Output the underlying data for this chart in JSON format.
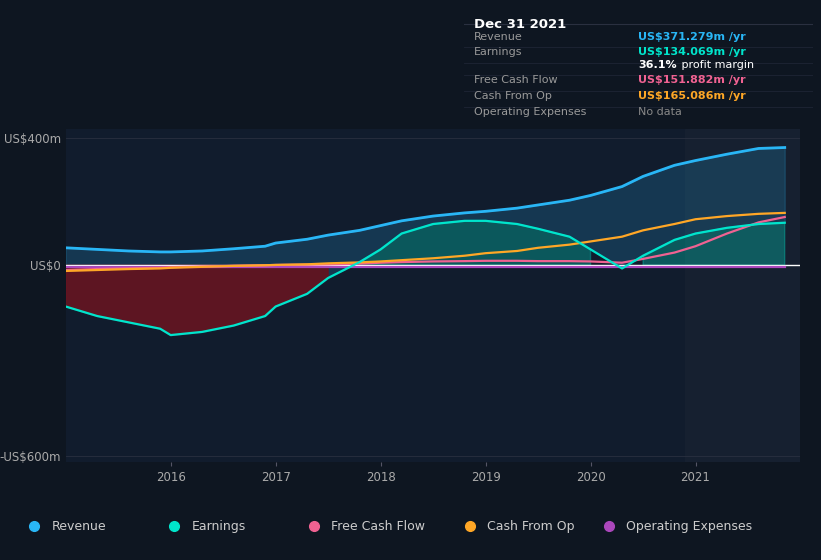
{
  "bg_color": "#0e1621",
  "chart_area_color": "#111c2d",
  "highlight_area_color": "#162030",
  "years": [
    2015.0,
    2015.3,
    2015.6,
    2015.9,
    2016.0,
    2016.3,
    2016.6,
    2016.9,
    2017.0,
    2017.3,
    2017.5,
    2017.8,
    2018.0,
    2018.2,
    2018.5,
    2018.8,
    2019.0,
    2019.3,
    2019.5,
    2019.8,
    2020.0,
    2020.3,
    2020.5,
    2020.8,
    2021.0,
    2021.3,
    2021.6,
    2021.85
  ],
  "revenue": [
    55,
    50,
    45,
    42,
    42,
    45,
    52,
    60,
    70,
    82,
    95,
    110,
    125,
    140,
    155,
    165,
    170,
    180,
    190,
    205,
    220,
    248,
    280,
    315,
    330,
    350,
    368,
    371
  ],
  "earnings": [
    -130,
    -160,
    -180,
    -200,
    -220,
    -210,
    -190,
    -160,
    -130,
    -90,
    -40,
    10,
    50,
    100,
    130,
    140,
    140,
    130,
    115,
    90,
    50,
    -10,
    30,
    80,
    100,
    118,
    130,
    134
  ],
  "free_cash_flow": [
    -15,
    -12,
    -10,
    -8,
    -6,
    -4,
    -2,
    0,
    1,
    2,
    3,
    5,
    8,
    10,
    12,
    13,
    14,
    14,
    13,
    13,
    12,
    8,
    20,
    40,
    60,
    100,
    135,
    152
  ],
  "cash_from_op": [
    -18,
    -15,
    -12,
    -10,
    -8,
    -5,
    -2,
    0,
    1,
    3,
    6,
    9,
    12,
    16,
    22,
    30,
    38,
    45,
    55,
    65,
    75,
    90,
    110,
    130,
    145,
    155,
    162,
    165
  ],
  "operating_expenses": [
    -5,
    -5,
    -5,
    -5,
    -5,
    -5,
    -5,
    -5,
    -5,
    -5,
    -5,
    -5,
    -5,
    -5,
    -5,
    -5,
    -5,
    -5,
    -5,
    -5,
    -5,
    -5,
    -5,
    -5,
    -5,
    -5,
    -5,
    -5
  ],
  "xlim": [
    2015.0,
    2022.0
  ],
  "ylim": [
    -620,
    430
  ],
  "yticks": [
    -600,
    0,
    400
  ],
  "ytick_labels": [
    "-US$600m",
    "US$0",
    "US$400m"
  ],
  "xtick_years": [
    2016,
    2017,
    2018,
    2019,
    2020,
    2021
  ],
  "revenue_color": "#29b6f6",
  "earnings_color": "#00e5cc",
  "free_cash_flow_color": "#f06292",
  "cash_from_op_color": "#ffa726",
  "operating_expenses_color": "#ab47bc",
  "zero_line_color": "#ffffff",
  "highlight_x_start": 2020.9,
  "highlight_x_end": 2022.0,
  "table_title": "Dec 31 2021",
  "table_rows": [
    {
      "label": "Revenue",
      "value": "US$371.279m /yr",
      "value_color": "#29b6f6"
    },
    {
      "label": "Earnings",
      "value": "US$134.069m /yr",
      "value_color": "#00e5cc"
    },
    {
      "label": "",
      "value": "36.1% profit margin",
      "value_color": "#ffffff",
      "bold_part": "36.1%"
    },
    {
      "label": "Free Cash Flow",
      "value": "US$151.882m /yr",
      "value_color": "#f06292"
    },
    {
      "label": "Cash From Op",
      "value": "US$165.086m /yr",
      "value_color": "#ffa726"
    },
    {
      "label": "Operating Expenses",
      "value": "No data",
      "value_color": "#888888"
    }
  ],
  "legend_items": [
    {
      "label": "Revenue",
      "color": "#29b6f6"
    },
    {
      "label": "Earnings",
      "color": "#00e5cc"
    },
    {
      "label": "Free Cash Flow",
      "color": "#f06292"
    },
    {
      "label": "Cash From Op",
      "color": "#ffa726"
    },
    {
      "label": "Operating Expenses",
      "color": "#ab47bc"
    }
  ]
}
